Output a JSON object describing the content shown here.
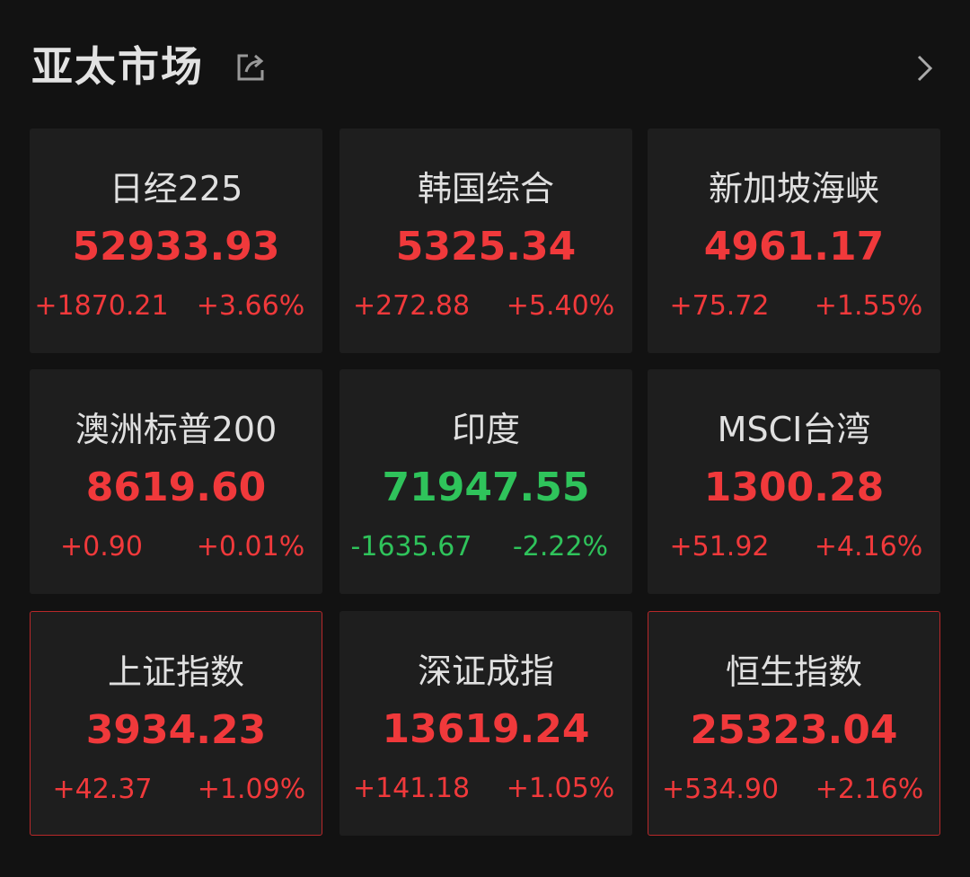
{
  "header": {
    "title": "亚太市场"
  },
  "cards": [
    {
      "name": "日经225",
      "price": "52933.93",
      "change": "+1870.21",
      "percent": "+3.66%",
      "color": "#f0393b",
      "highlighted": false
    },
    {
      "name": "韩国综合",
      "price": "5325.34",
      "change": "+272.88",
      "percent": "+5.40%",
      "color": "#f0393b",
      "highlighted": false
    },
    {
      "name": "新加坡海峡",
      "price": "4961.17",
      "change": "+75.72",
      "percent": "+1.55%",
      "color": "#f0393b",
      "highlighted": false
    },
    {
      "name": "澳洲标普200",
      "price": "8619.60",
      "change": "+0.90",
      "percent": "+0.01%",
      "color": "#f0393b",
      "highlighted": false
    },
    {
      "name": "印度",
      "price": "71947.55",
      "change": "-1635.67",
      "percent": "-2.22%",
      "color": "#2fc35b",
      "highlighted": false
    },
    {
      "name": "MSCI台湾",
      "price": "1300.28",
      "change": "+51.92",
      "percent": "+4.16%",
      "color": "#f0393b",
      "highlighted": false
    },
    {
      "name": "上证指数",
      "price": "3934.23",
      "change": "+42.37",
      "percent": "+1.09%",
      "color": "#f0393b",
      "highlighted": true
    },
    {
      "name": "深证成指",
      "price": "13619.24",
      "change": "+141.18",
      "percent": "+1.05%",
      "color": "#f0393b",
      "highlighted": false
    },
    {
      "name": "恒生指数",
      "price": "25323.04",
      "change": "+534.90",
      "percent": "+2.16%",
      "color": "#f0393b",
      "highlighted": true
    }
  ]
}
